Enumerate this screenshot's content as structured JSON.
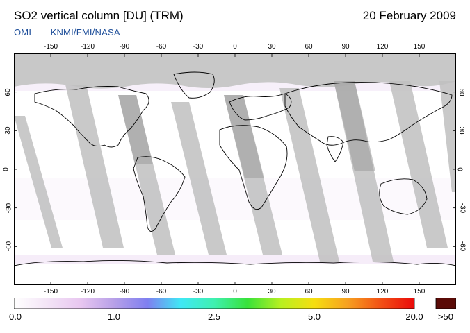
{
  "header": {
    "title": "SO2 vertical column [DU] (TRM)",
    "date": "20 February 2009",
    "credit_left": "OMI",
    "credit_sep": "–",
    "credit_right": "KNMI/FMI/NASA"
  },
  "map": {
    "lon_ticks": [
      -150,
      -120,
      -90,
      -60,
      -30,
      0,
      30,
      60,
      90,
      120,
      150
    ],
    "lat_ticks": [
      60,
      30,
      0,
      -30,
      -60
    ],
    "no_data_color": "#c8c8c8",
    "background_color": "#ffffff",
    "coastline_color": "#000000"
  },
  "colorbar": {
    "tick_labels": [
      "0.0",
      "1.0",
      "2.5",
      "5.0",
      "20.0"
    ],
    "overflow_label": ">50",
    "overflow_color": "#5a0a06",
    "stops": [
      "#ffffff",
      "#f3e4f6",
      "#e8c6f0",
      "#b7a0e8",
      "#7f7ff0",
      "#3fe8f5",
      "#3ff0b0",
      "#38e23a",
      "#b8f020",
      "#f6de10",
      "#f7a020",
      "#f25015",
      "#ea0a0a"
    ]
  }
}
